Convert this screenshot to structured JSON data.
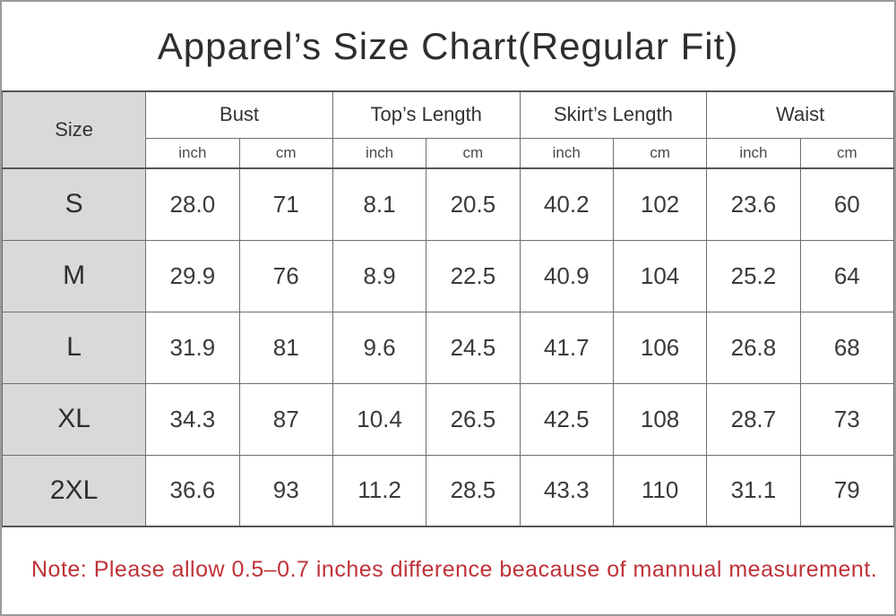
{
  "title": "Apparel’s Size Chart(Regular Fit)",
  "colors": {
    "note_red": "#bf3238",
    "size_column_gray": "#d9d9d9",
    "grid_line_gray": "#6e6e6e"
  },
  "table": {
    "size_header": "Size",
    "groups": [
      {
        "label": "Bust"
      },
      {
        "label": "Top’s Length"
      },
      {
        "label": "Skirt’s Length"
      },
      {
        "label": "Waist"
      }
    ],
    "units": [
      "inch",
      "cm",
      "inch",
      "cm",
      "inch",
      "cm",
      "inch",
      "cm"
    ],
    "rows": [
      {
        "size": "S",
        "values": [
          "28.0",
          "71",
          "8.1",
          "20.5",
          "40.2",
          "102",
          "23.6",
          "60"
        ]
      },
      {
        "size": "M",
        "values": [
          "29.9",
          "76",
          "8.9",
          "22.5",
          "40.9",
          "104",
          "25.2",
          "64"
        ]
      },
      {
        "size": "L",
        "values": [
          "31.9",
          "81",
          "9.6",
          "24.5",
          "41.7",
          "106",
          "26.8",
          "68"
        ]
      },
      {
        "size": "XL",
        "values": [
          "34.3",
          "87",
          "10.4",
          "26.5",
          "42.5",
          "108",
          "28.7",
          "73"
        ]
      },
      {
        "size": "2XL",
        "values": [
          "36.6",
          "93",
          "11.2",
          "28.5",
          "43.3",
          "110",
          "31.1",
          "79"
        ]
      }
    ]
  },
  "note": "Note: Please allow 0.5–0.7 inches difference beacause of mannual measurement.",
  "chart_data": {
    "type": "table",
    "title": "Apparel’s Size Chart(Regular Fit)",
    "columns": [
      "Size",
      "Bust (inch)",
      "Bust (cm)",
      "Top’s Length (inch)",
      "Top’s Length (cm)",
      "Skirt’s Length (inch)",
      "Skirt’s Length (cm)",
      "Waist (inch)",
      "Waist (cm)"
    ],
    "rows": [
      [
        "S",
        28.0,
        71,
        8.1,
        20.5,
        40.2,
        102,
        23.6,
        60
      ],
      [
        "M",
        29.9,
        76,
        8.9,
        22.5,
        40.9,
        104,
        25.2,
        64
      ],
      [
        "L",
        31.9,
        81,
        9.6,
        24.5,
        41.7,
        106,
        26.8,
        68
      ],
      [
        "XL",
        34.3,
        87,
        10.4,
        26.5,
        42.5,
        108,
        28.7,
        73
      ],
      [
        "2XL",
        36.6,
        93,
        11.2,
        28.5,
        43.3,
        110,
        31.1,
        79
      ]
    ],
    "note": "Note: Please allow 0.5–0.7 inches difference beacause of mannual measurement.",
    "layout": {
      "grid": true,
      "size_column_highlight": "#d9d9d9"
    }
  }
}
